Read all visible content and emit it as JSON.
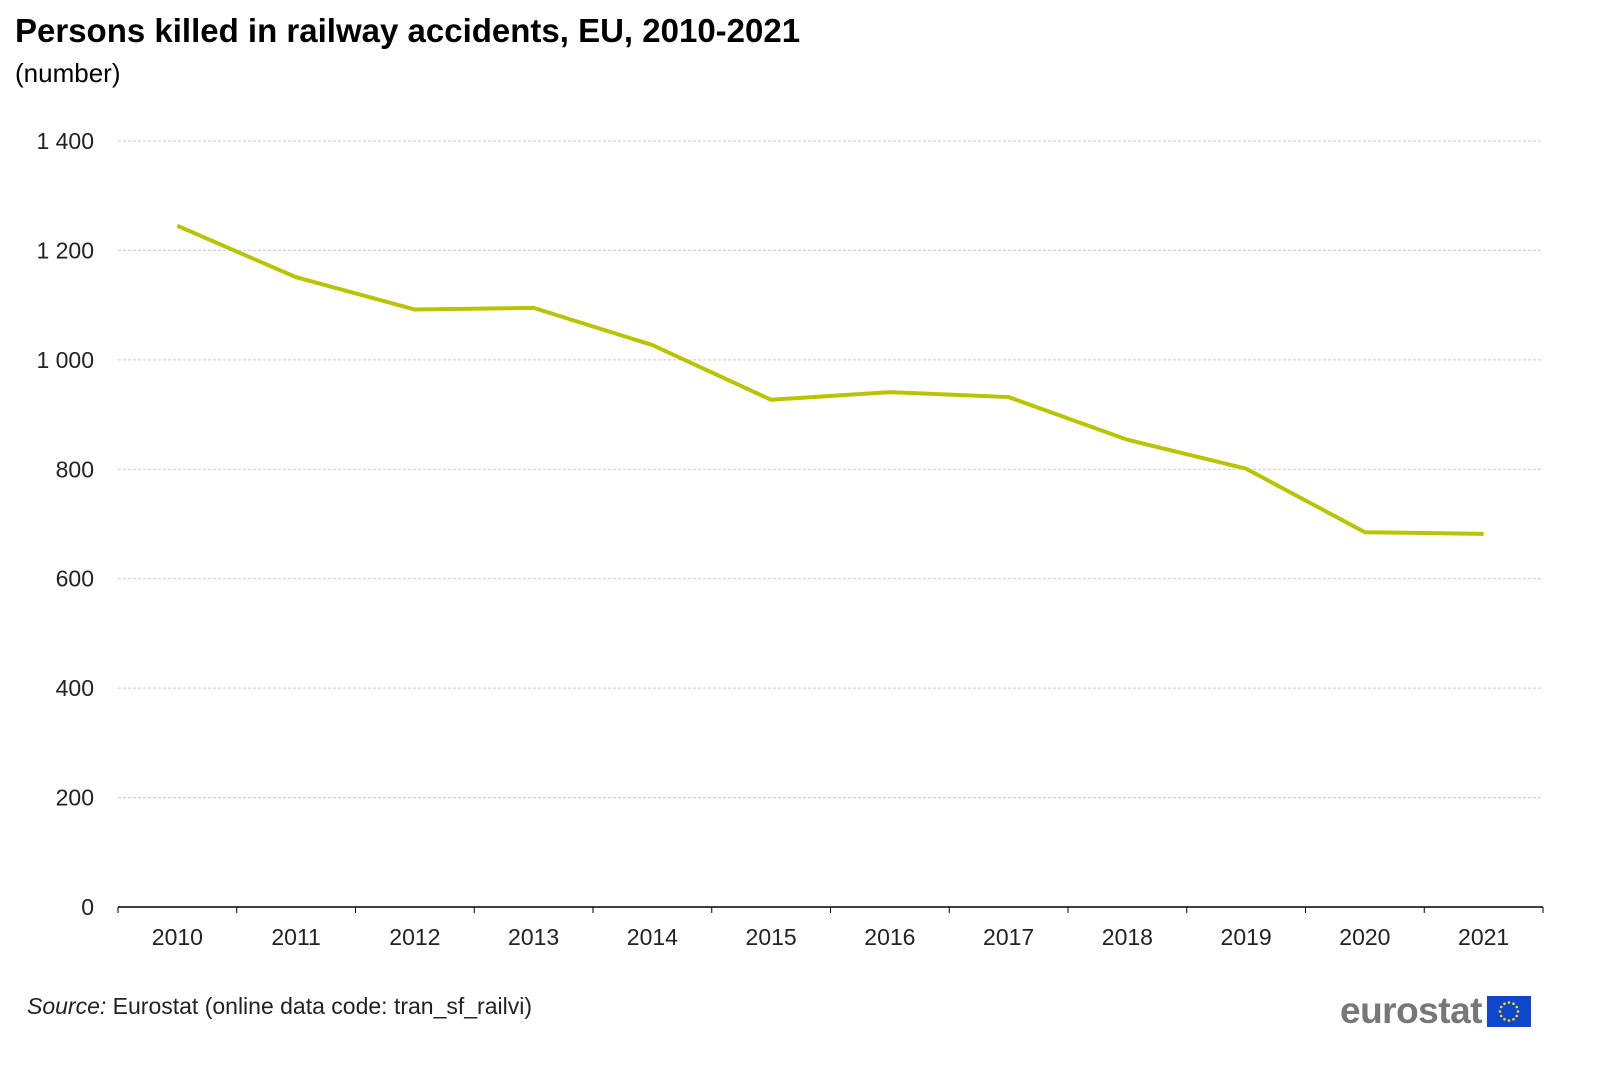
{
  "chart_data": {
    "type": "line",
    "title": "Persons killed in railway accidents, EU, 2010-2021",
    "subtitle": "(number)",
    "categories": [
      "2010",
      "2011",
      "2012",
      "2013",
      "2014",
      "2015",
      "2016",
      "2017",
      "2018",
      "2019",
      "2020",
      "2021"
    ],
    "values": [
      1245,
      1151,
      1092,
      1095,
      1027,
      927,
      941,
      932,
      854,
      801,
      685,
      682
    ],
    "ylim": [
      0,
      1400
    ],
    "yticks": [
      0,
      200,
      400,
      600,
      800,
      1000,
      1200,
      1400
    ],
    "ytick_labels": [
      "0",
      "200",
      "400",
      "600",
      "800",
      "1 000",
      "1 200",
      "1 400"
    ],
    "grid": true,
    "line_color": "#b9c300"
  },
  "source": {
    "label": "Source:",
    "text": " Eurostat (online data code: tran_sf_railvi)"
  },
  "logo": {
    "text": "eurostat",
    "flag_color": "#0e47cb"
  }
}
